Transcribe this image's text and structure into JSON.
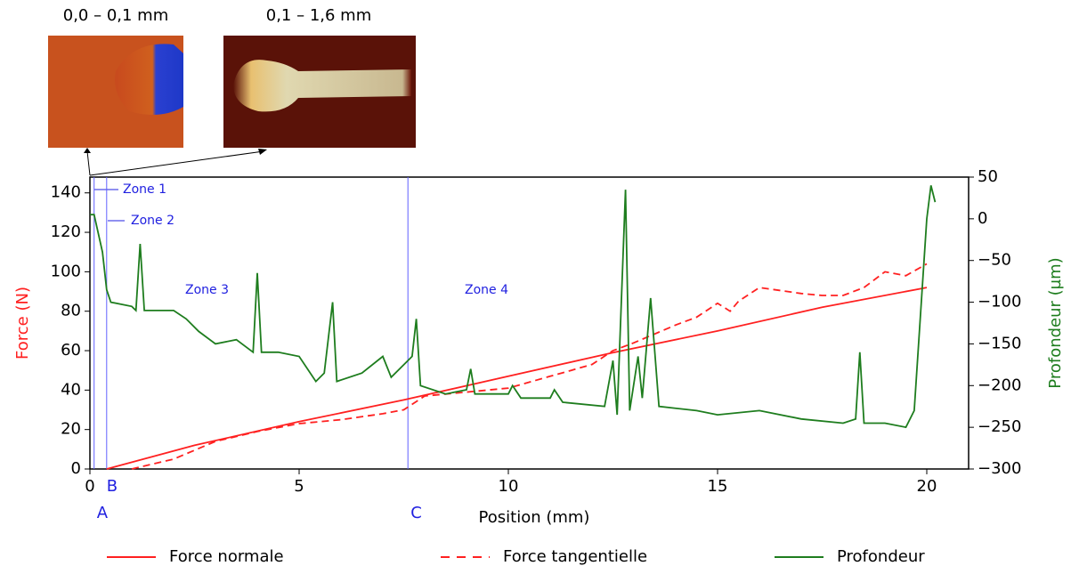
{
  "chart_data": {
    "type": "line",
    "image_captions": [
      "0,0 – 0,1 mm",
      "0,1 – 1,6 mm"
    ],
    "xlabel": "Position (mm)",
    "ylabel": "Force (N)",
    "y2label": "Profondeur (µm)",
    "xlim": [
      0,
      21
    ],
    "xticks": [
      0,
      5,
      10,
      15,
      20
    ],
    "ylim": [
      0,
      148
    ],
    "yticks": [
      0,
      20,
      40,
      60,
      80,
      100,
      120,
      140
    ],
    "y2lim": [
      -300,
      50
    ],
    "y2ticks": [
      {
        "value": -300,
        "label": "−300"
      },
      {
        "value": -250,
        "label": "−250"
      },
      {
        "value": -200,
        "label": "−200"
      },
      {
        "value": -150,
        "label": "−150"
      },
      {
        "value": -100,
        "label": "−100"
      },
      {
        "value": -50,
        "label": "−50"
      },
      0,
      50
    ],
    "markers": [
      {
        "label": "A",
        "x": 0.1
      },
      {
        "label": "B",
        "x": 0.4
      },
      {
        "label": "C",
        "x": 7.6
      }
    ],
    "zones": [
      "Zone 1",
      "Zone 2",
      "Zone 3",
      "Zone 4"
    ],
    "series": [
      {
        "name": "Force normale",
        "color": "#ff2020",
        "dash": false,
        "x": [
          0.4,
          2.5,
          5,
          7.5,
          10,
          12.5,
          15,
          17.5,
          20
        ],
        "values": [
          0,
          12,
          24,
          35,
          47,
          59,
          70,
          82,
          92
        ]
      },
      {
        "name": "Force tangentielle",
        "color": "#ff2020",
        "dash": true,
        "x": [
          1,
          2,
          3,
          4,
          5,
          6,
          7,
          7.5,
          8,
          9,
          10,
          11,
          11.5,
          12,
          12.5,
          13,
          14,
          14.5,
          15,
          15.3,
          15.5,
          16,
          17,
          17.5,
          18,
          18.5,
          19,
          19.5,
          20
        ],
        "values": [
          0,
          5,
          14,
          19,
          23,
          25,
          28,
          30,
          37,
          39,
          41,
          47,
          50,
          53,
          60,
          64,
          73,
          77,
          84,
          80,
          85,
          92,
          89,
          88,
          88,
          92,
          100,
          98,
          104
        ]
      },
      {
        "name": "Profondeur",
        "color": "#1e7d1e",
        "dash": false,
        "axis": "y2",
        "x": [
          0,
          0.1,
          0.3,
          0.4,
          0.5,
          1.0,
          1.1,
          1.2,
          1.3,
          2,
          2.3,
          2.6,
          3,
          3.5,
          3.9,
          4.0,
          4.1,
          4.5,
          5,
          5.4,
          5.6,
          5.8,
          5.9,
          6.5,
          7,
          7.2,
          7.5,
          7.7,
          7.8,
          7.9,
          8.5,
          9,
          9.1,
          9.2,
          10,
          10.1,
          10.3,
          11,
          11.1,
          11.3,
          12.3,
          12.5,
          12.6,
          12.8,
          12.9,
          13.1,
          13.2,
          13.4,
          13.6,
          14.5,
          15,
          16,
          17,
          18,
          18.3,
          18.4,
          18.5,
          19,
          19.5,
          19.7,
          20,
          20.1,
          20.2
        ],
        "values": [
          5,
          5,
          -40,
          -85,
          -100,
          -105,
          -110,
          -30,
          -110,
          -110,
          -120,
          -135,
          -150,
          -145,
          -160,
          -65,
          -160,
          -160,
          -165,
          -195,
          -185,
          -100,
          -195,
          -185,
          -165,
          -190,
          -175,
          -165,
          -120,
          -200,
          -210,
          -205,
          -180,
          -210,
          -210,
          -200,
          -215,
          -215,
          -205,
          -220,
          -225,
          -170,
          -235,
          35,
          -230,
          -165,
          -215,
          -95,
          -225,
          -230,
          -235,
          -230,
          -240,
          -245,
          -240,
          -160,
          -245,
          -245,
          -250,
          -230,
          0,
          40,
          20
        ]
      }
    ]
  }
}
